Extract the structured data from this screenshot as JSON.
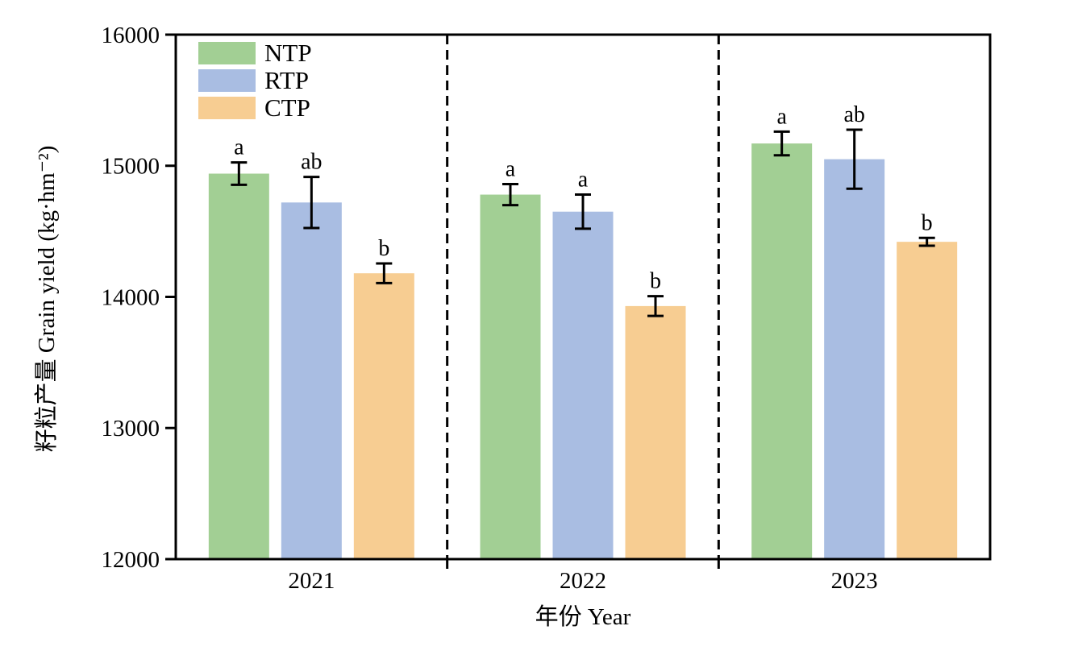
{
  "figure": {
    "background": "#ffffff",
    "axis_color": "#000000",
    "error_bar_color": "#000000",
    "separator_style": "dashed"
  },
  "chart_data": {
    "type": "bar",
    "title": "",
    "xlabel": "年份 Year",
    "ylabel": "籽粒产量 Grain yield (kg·hm⁻²)",
    "categories": [
      "2021",
      "2022",
      "2023"
    ],
    "ylim": [
      12000,
      16000
    ],
    "yticks": [
      12000,
      13000,
      14000,
      15000,
      16000
    ],
    "ytick_labels": [
      "12000",
      "13000",
      "14000",
      "15000",
      "16000"
    ],
    "grid": false,
    "legend_position": "top-left-inside",
    "group_separators": [
      1,
      2
    ],
    "series": [
      {
        "name": "NTP",
        "color": "#a2cf94",
        "values": [
          14940,
          14780,
          15170
        ],
        "errors": [
          85,
          80,
          90
        ],
        "sig_letters": [
          "a",
          "a",
          "a"
        ]
      },
      {
        "name": "RTP",
        "color": "#a9bde2",
        "values": [
          14720,
          14650,
          15050
        ],
        "errors": [
          195,
          130,
          225
        ],
        "sig_letters": [
          "ab",
          "a",
          "ab"
        ]
      },
      {
        "name": "CTP",
        "color": "#f7cd92",
        "values": [
          14180,
          13930,
          14420
        ],
        "errors": [
          75,
          75,
          30
        ],
        "sig_letters": [
          "b",
          "b",
          "b"
        ]
      }
    ]
  }
}
